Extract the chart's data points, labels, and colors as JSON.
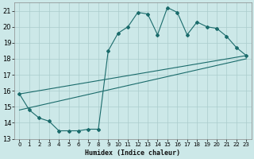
{
  "xlabel": "Humidex (Indice chaleur)",
  "bg_color": "#cce8e8",
  "line_color": "#1a6b6b",
  "grid_color": "#aacccc",
  "xlim": [
    -0.5,
    23.5
  ],
  "ylim": [
    13,
    21.5
  ],
  "yticks": [
    13,
    14,
    15,
    16,
    17,
    18,
    19,
    20,
    21
  ],
  "xticks": [
    0,
    1,
    2,
    3,
    4,
    5,
    6,
    7,
    8,
    9,
    10,
    11,
    12,
    13,
    14,
    15,
    16,
    17,
    18,
    19,
    20,
    21,
    22,
    23
  ],
  "line1_x": [
    0,
    1,
    2,
    3,
    4,
    5,
    6,
    7,
    8,
    9,
    10,
    11,
    12,
    13,
    14,
    15,
    16,
    17,
    18,
    19,
    20,
    21,
    22,
    23
  ],
  "line1_y": [
    15.8,
    14.8,
    14.3,
    14.1,
    13.5,
    13.5,
    13.5,
    13.6,
    13.6,
    18.5,
    19.6,
    20.0,
    20.9,
    20.8,
    19.5,
    21.2,
    20.9,
    19.5,
    20.3,
    20.0,
    19.9,
    19.4,
    18.7,
    18.2
  ],
  "line2_x": [
    0,
    23
  ],
  "line2_y": [
    15.8,
    18.2
  ],
  "line3_x": [
    0,
    23
  ],
  "line3_y": [
    14.8,
    18.0
  ]
}
